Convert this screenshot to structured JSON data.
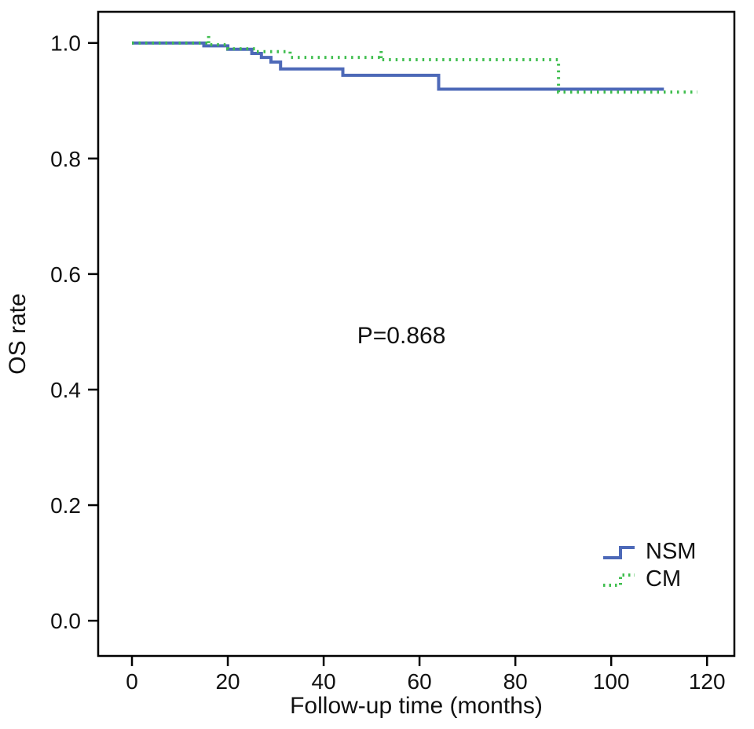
{
  "figure": {
    "background": "#ffffff"
  },
  "chart_data": {
    "type": "line",
    "subtype": "kaplan-meier-step-survival",
    "title": "",
    "xlabel": "Follow-up time (months)",
    "ylabel": "OS rate",
    "xlim": [
      -7.05,
      125.7
    ],
    "ylim": [
      -0.061,
      1.054
    ],
    "grid": false,
    "xticks": {
      "values": [
        0,
        20,
        40,
        60,
        80,
        100,
        120
      ],
      "labels": [
        "0",
        "20",
        "40",
        "60",
        "80",
        "100",
        "120"
      ]
    },
    "yticks": {
      "values": [
        0.0,
        0.2,
        0.4,
        0.6,
        0.8,
        1.0
      ],
      "labels": [
        "0.0",
        "0.2",
        "0.4",
        "0.6",
        "0.8",
        "1.0"
      ]
    },
    "annotation": {
      "text": "P=0.868",
      "x": 47,
      "y": 0.48
    },
    "legend": {
      "position": "lower-right",
      "entries": [
        "NSM",
        "CM"
      ]
    },
    "series": [
      {
        "name": "NSM",
        "color": "#4d69b8",
        "line_style": "solid",
        "points": [
          [
            0,
            1.0
          ],
          [
            15,
            0.995
          ],
          [
            20,
            0.989
          ],
          [
            25,
            0.982
          ],
          [
            27,
            0.975
          ],
          [
            29,
            0.967
          ],
          [
            31,
            0.955
          ],
          [
            44,
            0.944
          ],
          [
            64,
            0.92
          ],
          [
            111,
            0.92
          ]
        ],
        "censors": []
      },
      {
        "name": "CM",
        "color": "#3fbe4e",
        "line_style": "dotted",
        "points": [
          [
            0,
            1.0
          ],
          [
            16,
            0.997
          ],
          [
            20,
            0.99
          ],
          [
            26,
            0.985
          ],
          [
            33,
            0.975
          ],
          [
            52,
            0.971
          ],
          [
            89,
            0.915
          ],
          [
            118,
            0.915
          ]
        ],
        "censors": [
          [
            16,
            0.997
          ],
          [
            52,
            0.971
          ]
        ]
      }
    ]
  }
}
